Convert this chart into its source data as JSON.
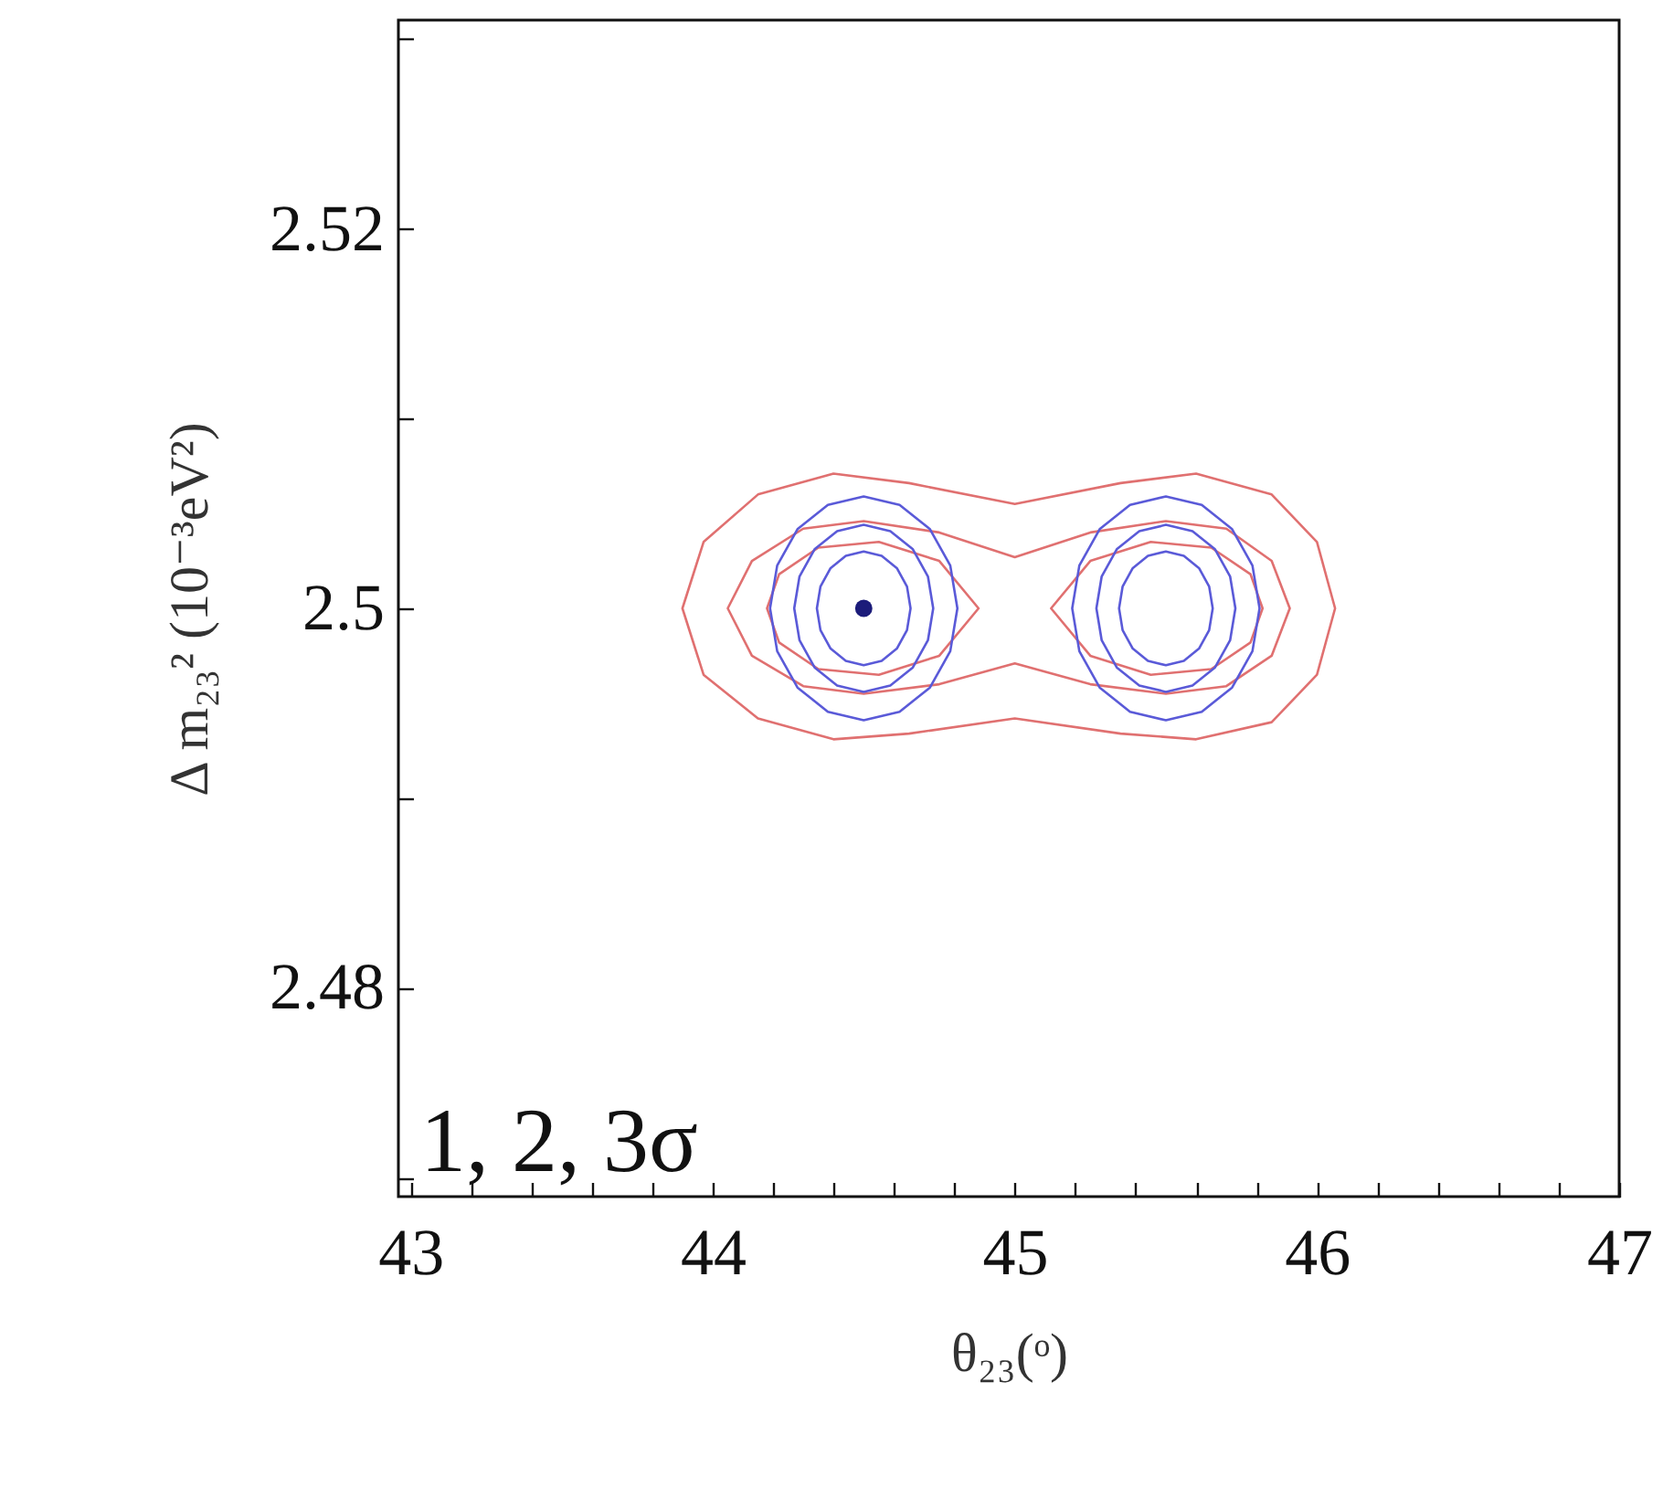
{
  "chart_data": {
    "type": "scatter",
    "xlabel": "θ₂₃(ᵒ)",
    "ylabel": "Δ m₂₃² (10⁻³eV²)",
    "annotations": [
      "1, 2, 3σ"
    ],
    "xlim": [
      42.96,
      47
    ],
    "ylim": [
      2.469,
      2.531
    ],
    "xticks": [
      43,
      {
        "value": 43.2,
        "label": null
      },
      {
        "value": 43.4,
        "label": null
      },
      {
        "value": 43.6,
        "label": null
      },
      {
        "value": 43.8,
        "label": null
      },
      44,
      {
        "value": 44.2,
        "label": null
      },
      {
        "value": 44.4,
        "label": null
      },
      {
        "value": 44.6,
        "label": null
      },
      {
        "value": 44.8,
        "label": null
      },
      45,
      {
        "value": 45.2,
        "label": null
      },
      {
        "value": 45.4,
        "label": null
      },
      {
        "value": 45.6,
        "label": null
      },
      {
        "value": 45.8,
        "label": null
      },
      46,
      {
        "value": 46.2,
        "label": null
      },
      {
        "value": 46.4,
        "label": null
      },
      {
        "value": 46.6,
        "label": null
      },
      {
        "value": 46.8,
        "label": null
      },
      47
    ],
    "yticks": [
      {
        "value": 2.47,
        "label": null
      },
      2.48,
      {
        "value": 2.49,
        "label": null
      },
      2.5,
      {
        "value": 2.51,
        "label": null
      },
      2.52,
      {
        "value": 2.53,
        "label": null
      }
    ],
    "grid": false,
    "marker": "circle",
    "series": [
      {
        "color": "#1c1c7a",
        "x": [
          44.5
        ],
        "values": [
          2.5
        ]
      }
    ]
  }
}
